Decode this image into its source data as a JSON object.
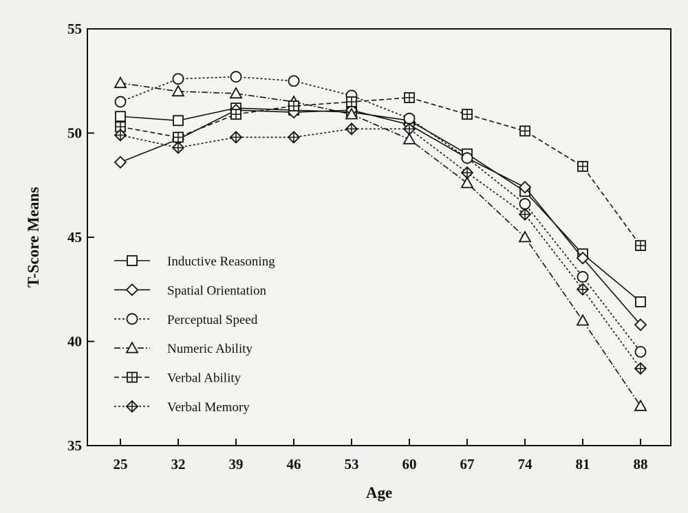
{
  "chart_data": {
    "type": "line",
    "xlabel": "Age",
    "ylabel": "T-Score Means",
    "ylim": [
      35,
      55
    ],
    "yticks": [
      35,
      40,
      45,
      50,
      55
    ],
    "x": [
      25,
      32,
      39,
      46,
      53,
      60,
      67,
      74,
      81,
      88
    ],
    "grid": false,
    "legend_position": "bottom-left",
    "series": [
      {
        "name": "Inductive Reasoning",
        "marker": "square",
        "dash": "solid",
        "values": [
          50.8,
          50.6,
          51.2,
          51.1,
          51.0,
          50.6,
          49.0,
          47.2,
          44.2,
          41.9
        ]
      },
      {
        "name": "Spatial Orientation",
        "marker": "diamond",
        "dash": "solid",
        "values": [
          48.6,
          49.7,
          51.1,
          51.0,
          51.1,
          50.4,
          48.8,
          47.4,
          44.0,
          40.8
        ]
      },
      {
        "name": "Perceptual Speed",
        "marker": "circle",
        "dash": "dotted",
        "values": [
          51.5,
          52.6,
          52.7,
          52.5,
          51.8,
          50.7,
          48.8,
          46.6,
          43.1,
          39.5
        ]
      },
      {
        "name": "Numeric Ability",
        "marker": "triangle",
        "dash": "dashdot",
        "values": [
          52.4,
          52.0,
          51.9,
          51.5,
          50.9,
          49.7,
          47.6,
          45.0,
          41.0,
          36.9
        ]
      },
      {
        "name": "Verbal Ability",
        "marker": "square-plus",
        "dash": "dashed",
        "values": [
          50.3,
          49.8,
          50.9,
          51.3,
          51.5,
          51.7,
          50.9,
          50.1,
          48.4,
          44.6
        ]
      },
      {
        "name": "Verbal Memory",
        "marker": "diamond-plus",
        "dash": "dotted",
        "values": [
          49.9,
          49.3,
          49.8,
          49.8,
          50.2,
          50.2,
          48.1,
          46.1,
          42.5,
          38.7
        ]
      }
    ]
  }
}
